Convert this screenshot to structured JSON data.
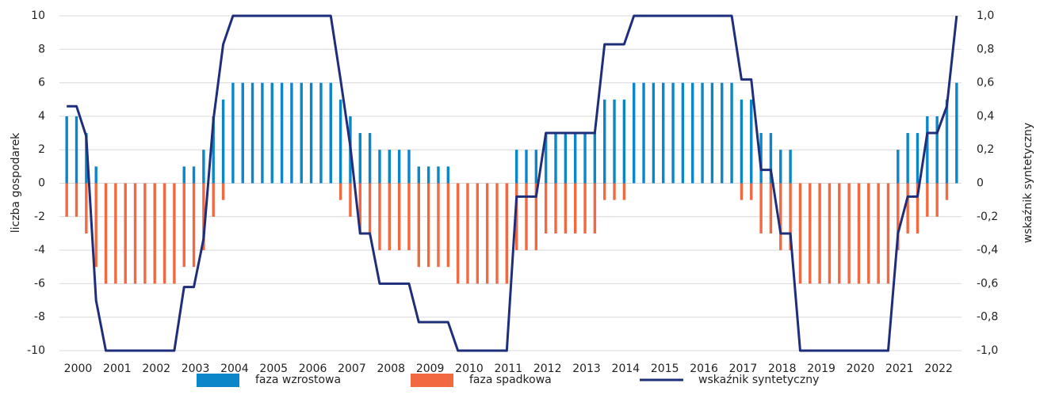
{
  "chart_data": {
    "type": "bar",
    "categories": [
      null,
      "2000",
      null,
      null,
      null,
      "2001",
      null,
      null,
      null,
      "2002",
      null,
      null,
      null,
      "2003",
      null,
      null,
      null,
      "2004",
      null,
      null,
      null,
      "2005",
      null,
      null,
      null,
      "2006",
      null,
      null,
      null,
      "2007",
      null,
      null,
      null,
      "2008",
      null,
      null,
      null,
      "2009",
      null,
      null,
      null,
      "2010",
      null,
      null,
      null,
      "2011",
      null,
      null,
      null,
      "2012",
      null,
      null,
      null,
      "2013",
      null,
      null,
      null,
      "2014",
      null,
      null,
      null,
      "2015",
      null,
      null,
      null,
      "2016",
      null,
      null,
      null,
      "2017",
      null,
      null,
      null,
      "2018",
      null,
      null,
      null,
      "2019",
      null,
      null,
      null,
      "2020",
      null,
      null,
      null,
      "2021",
      null,
      null,
      null,
      "2022",
      null,
      null
    ],
    "ylabel": "liczba gospodarek",
    "y2label": "wskaźnik syntetyczny",
    "ylim": [
      -10,
      10
    ],
    "yticks": [
      -10,
      -8,
      -6,
      -4,
      -2,
      0,
      2,
      4,
      6,
      8,
      10
    ],
    "y2lim": [
      -1,
      1
    ],
    "y2ticks": [
      {
        "value": -1,
        "label": "-1,0"
      },
      {
        "value": -0.8,
        "label": "-0,8"
      },
      {
        "value": -0.6,
        "label": "-0,6"
      },
      {
        "value": -0.4,
        "label": "-0,4"
      },
      {
        "value": -0.2,
        "label": "-0,2"
      },
      {
        "value": 0,
        "label": "0"
      },
      {
        "value": 0.2,
        "label": "0,2"
      },
      {
        "value": 0.4,
        "label": "0,4"
      },
      {
        "value": 0.6,
        "label": "0,6"
      },
      {
        "value": 0.8,
        "label": "0,8"
      },
      {
        "value": 1,
        "label": "1,0"
      }
    ],
    "grid": true,
    "legend": "bottom",
    "series": [
      {
        "name": "faza wzrostowa",
        "color": "#0a86c9",
        "values": [
          4,
          4,
          3,
          1,
          0,
          0,
          0,
          0,
          0,
          0,
          0,
          0,
          1,
          1,
          2,
          4,
          5,
          6,
          6,
          6,
          6,
          6,
          6,
          6,
          6,
          6,
          6,
          6,
          5,
          4,
          3,
          3,
          2,
          2,
          2,
          2,
          1,
          1,
          1,
          1,
          0,
          0,
          0,
          0,
          0,
          0,
          2,
          2,
          2,
          3,
          3,
          3,
          3,
          3,
          3,
          5,
          5,
          5,
          6,
          6,
          6,
          6,
          6,
          6,
          6,
          6,
          6,
          6,
          6,
          5,
          5,
          3,
          3,
          2,
          2,
          0,
          0,
          0,
          0,
          0,
          0,
          0,
          0,
          0,
          0,
          2,
          3,
          3,
          4,
          4,
          5,
          6
        ]
      },
      {
        "name": "faza spadkowa",
        "color": "#f26841",
        "values": [
          -2,
          -2,
          -3,
          -5,
          -6,
          -6,
          -6,
          -6,
          -6,
          -6,
          -6,
          -6,
          -5,
          -5,
          -4,
          -2,
          -1,
          0,
          0,
          0,
          0,
          0,
          0,
          0,
          0,
          0,
          0,
          0,
          -1,
          -2,
          -3,
          -3,
          -4,
          -4,
          -4,
          -4,
          -5,
          -5,
          -5,
          -5,
          -6,
          -6,
          -6,
          -6,
          -6,
          -6,
          -4,
          -4,
          -4,
          -3,
          -3,
          -3,
          -3,
          -3,
          -3,
          -1,
          -1,
          -1,
          0,
          0,
          0,
          0,
          0,
          0,
          0,
          0,
          0,
          0,
          0,
          -1,
          -1,
          -3,
          -3,
          -4,
          -4,
          -6,
          -6,
          -6,
          -6,
          -6,
          -6,
          -6,
          -6,
          -6,
          -6,
          -4,
          -3,
          -3,
          -2,
          -2,
          -1,
          0
        ]
      },
      {
        "name": "wskaźnik syntetyczny",
        "color": "#1f2e7a",
        "type": "line",
        "axis": "y2",
        "values": [
          0.46,
          0.46,
          0.28,
          -0.7,
          -1,
          -1,
          -1,
          -1,
          -1,
          -1,
          -1,
          -1,
          -0.62,
          -0.62,
          -0.33,
          0.38,
          0.83,
          1,
          1,
          1,
          1,
          1,
          1,
          1,
          1,
          1,
          1,
          1,
          0.62,
          0.22,
          -0.3,
          -0.3,
          -0.6,
          -0.6,
          -0.6,
          -0.6,
          -0.83,
          -0.83,
          -0.83,
          -0.83,
          -1,
          -1,
          -1,
          -1,
          -1,
          -1,
          -0.08,
          -0.08,
          -0.08,
          0.3,
          0.3,
          0.3,
          0.3,
          0.3,
          0.3,
          0.83,
          0.83,
          0.83,
          1,
          1,
          1,
          1,
          1,
          1,
          1,
          1,
          1,
          1,
          1,
          0.62,
          0.62,
          0.08,
          0.08,
          -0.3,
          -0.3,
          -1,
          -1,
          -1,
          -1,
          -1,
          -1,
          -1,
          -1,
          -1,
          -1,
          -0.3,
          -0.08,
          -0.08,
          0.3,
          0.3,
          0.46,
          1
        ]
      }
    ]
  }
}
